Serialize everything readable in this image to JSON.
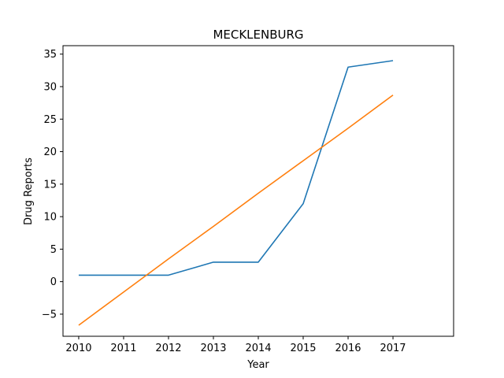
{
  "chart_data": {
    "type": "line",
    "title": "MECKLENBURG",
    "xlabel": "Year",
    "ylabel": "Drug Reports",
    "x": [
      2010,
      2011,
      2012,
      2013,
      2014,
      2015,
      2016,
      2017
    ],
    "xlim": [
      2009.65,
      2018.35
    ],
    "ylim": [
      -8.4,
      36.3
    ],
    "xticks": [
      2010,
      2011,
      2012,
      2013,
      2014,
      2015,
      2016,
      2017
    ],
    "yticks": [
      -5,
      0,
      5,
      10,
      15,
      20,
      25,
      30,
      35
    ],
    "grid": false,
    "series": [
      {
        "values": [
          1,
          1,
          1,
          3,
          3,
          12,
          33,
          34
        ],
        "color": "#1f77b4"
      },
      {
        "values": [
          -6.7,
          -1.6,
          3.5,
          8.5,
          13.6,
          18.6,
          23.6,
          28.7
        ],
        "color": "#ff7f0e"
      }
    ]
  }
}
